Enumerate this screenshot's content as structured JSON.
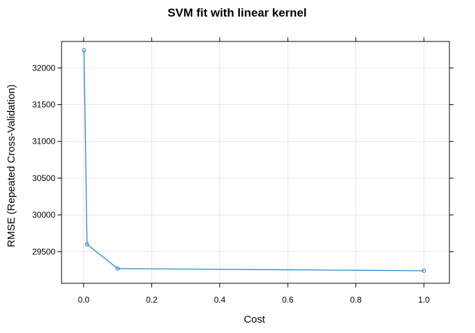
{
  "chart_data": {
    "type": "line",
    "title": "SVM fit with linear kernel",
    "xlabel": "Cost",
    "ylabel": "RMSE (Repeated Cross-Validation)",
    "xlim": [
      -0.065,
      1.075
    ],
    "ylim": [
      29070,
      32360
    ],
    "xticks": [
      0.0,
      0.2,
      0.4,
      0.6,
      0.8,
      1.0
    ],
    "xtick_labels": [
      "0.0",
      "0.2",
      "0.4",
      "0.6",
      "0.8",
      "1.0"
    ],
    "yticks": [
      29500,
      30000,
      30500,
      31000,
      31500,
      32000
    ],
    "ytick_labels": [
      "29500",
      "30000",
      "30500",
      "31000",
      "31500",
      "32000"
    ],
    "grid": true,
    "series": [
      {
        "color": "#1a7fc1",
        "x": [
          0.001,
          0.01,
          0.1,
          1.0
        ],
        "y": [
          32240,
          29600,
          29270,
          29240
        ]
      }
    ]
  }
}
